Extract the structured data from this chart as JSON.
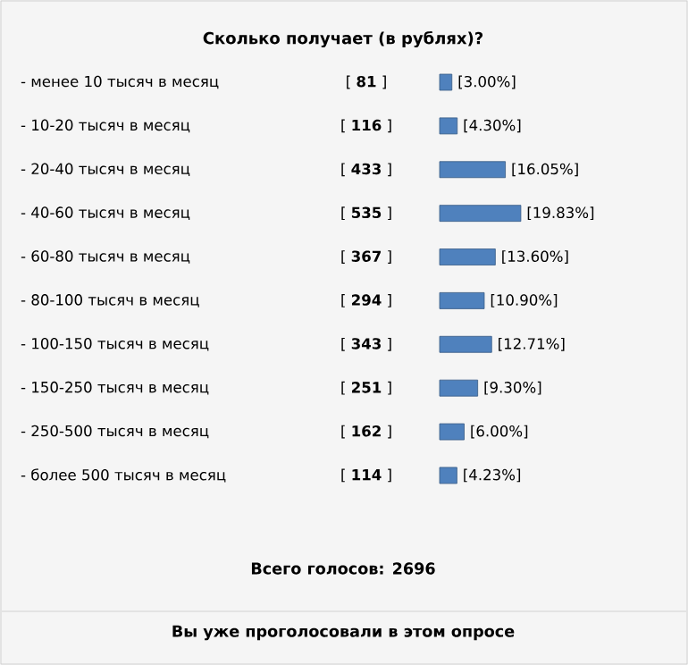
{
  "chart_data": {
    "type": "bar",
    "orientation": "horizontal",
    "title": "Сколько получает (в рублях)?",
    "categories": [
      "- менее 10 тысяч в месяц",
      "- 10-20 тысяч в месяц",
      "- 20-40 тысяч в месяц",
      "- 40-60 тысяч в месяц",
      "- 60-80 тысяч в месяц",
      "- 80-100 тысяч в месяц",
      "- 100-150 тысяч в месяц",
      "- 150-250 тысяч в месяц",
      "- 250-500 тысяч в месяц",
      "- более 500 тысяч в месяц"
    ],
    "values": [
      3.0,
      4.3,
      16.05,
      19.83,
      13.6,
      10.9,
      12.71,
      9.3,
      6.0,
      4.23
    ],
    "value_labels": [
      "[3.00%]",
      "[4.30%]",
      "[16.05%]",
      "[19.83%]",
      "[13.60%]",
      "[10.90%]",
      "[12.71%]",
      "[9.30%]",
      "[6.00%]",
      "[4.23%]"
    ],
    "color": "#4f81bd",
    "annotations": [
      "[ **81** ]",
      "[ **116** ]",
      "[ **433** ]",
      "[ **535** ]",
      "[ **367** ]",
      "[ **294** ]",
      "[ **343** ]",
      "[ **251** ]",
      "[ **162** ]",
      "[ **114** ]",
      "Всего голосов: 2696",
      "Вы уже проголосовали в этом опросе"
    ]
  }
}
